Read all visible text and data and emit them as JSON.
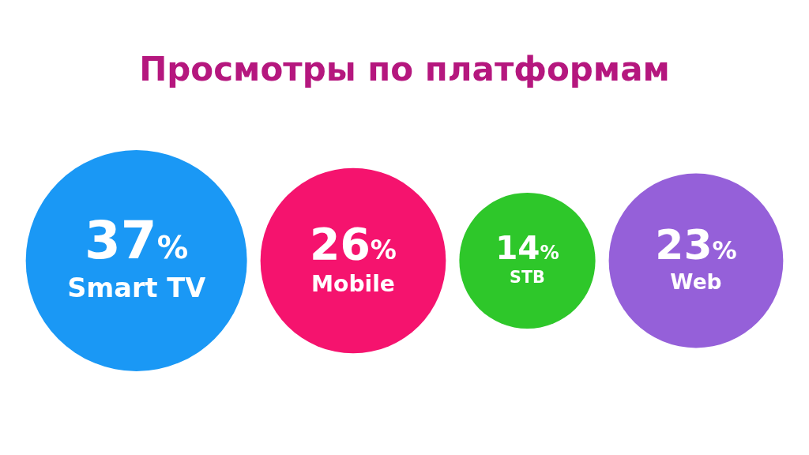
{
  "chart_data": {
    "type": "other",
    "title": "Просмотры по платформам",
    "categories": [
      "Smart TV",
      "Mobile",
      "STB",
      "Web"
    ],
    "values": [
      37,
      26,
      14,
      23
    ],
    "value_labels": [
      "37%",
      "26%",
      "14%",
      "23%"
    ],
    "colors": [
      "#1a98f5",
      "#f5136e",
      "#2ec72a",
      "#9560d9"
    ]
  }
}
